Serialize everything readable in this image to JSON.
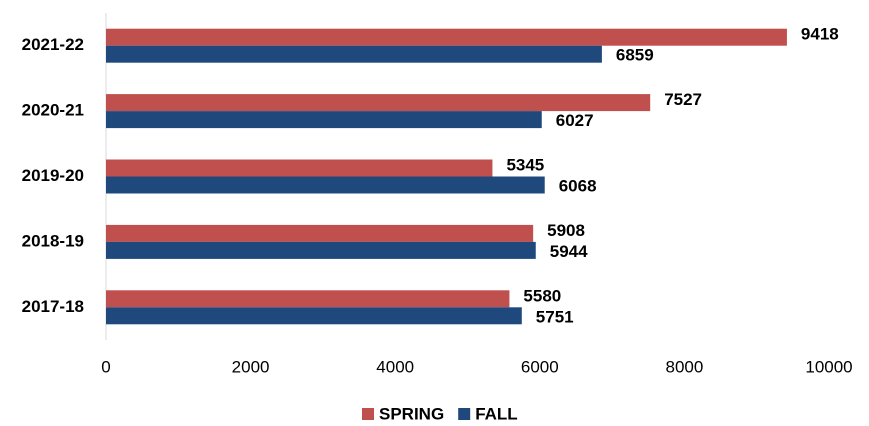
{
  "chart_data": {
    "type": "hbar",
    "categories": [
      "2021-22",
      "2020-21",
      "2019-20",
      "2018-19",
      "2017-18"
    ],
    "series": [
      {
        "name": "SPRING",
        "color": "#c0504d",
        "values": [
          9418,
          7527,
          5345,
          5908,
          5580
        ]
      },
      {
        "name": "FALL",
        "color": "#1f497d",
        "values": [
          6859,
          6027,
          6068,
          5944,
          5751
        ]
      }
    ],
    "xlim": [
      0,
      10000
    ],
    "xticks": [
      0,
      2000,
      4000,
      6000,
      8000,
      10000
    ],
    "grid": false,
    "legend": "bottom"
  }
}
